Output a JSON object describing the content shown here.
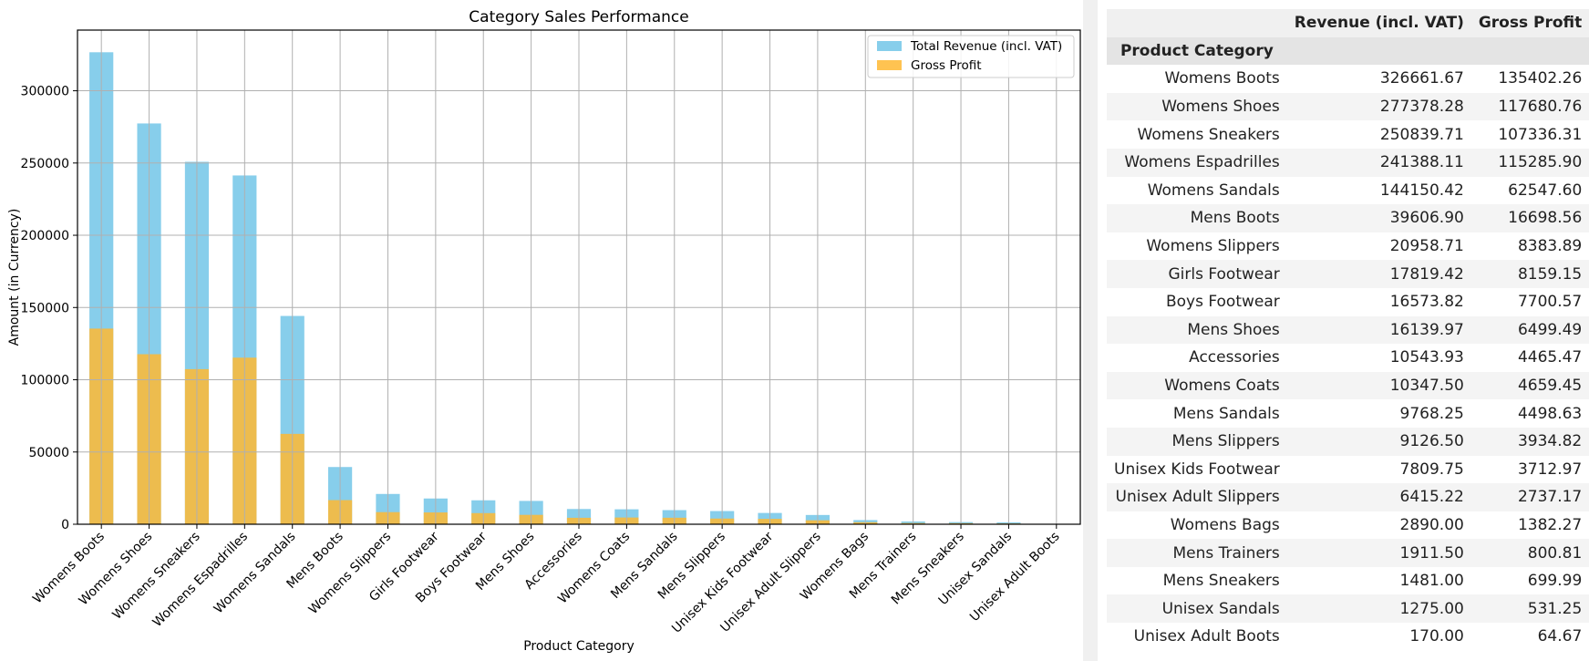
{
  "chart_data": {
    "type": "bar",
    "title": "Category Sales Performance",
    "xlabel": "Product Category",
    "ylabel": "Amount (in Currency)",
    "ylim": [
      0,
      342000
    ],
    "yticks": [
      0,
      50000,
      100000,
      150000,
      200000,
      250000,
      300000
    ],
    "grid": true,
    "legend_position": "top-right",
    "categories": [
      "Womens Boots",
      "Womens Shoes",
      "Womens Sneakers",
      "Womens Espadrilles",
      "Womens Sandals",
      "Mens Boots",
      "Womens Slippers",
      "Girls Footwear",
      "Boys Footwear",
      "Mens Shoes",
      "Accessories",
      "Womens Coats",
      "Mens Sandals",
      "Mens Slippers",
      "Unisex Kids Footwear",
      "Unisex Adult Slippers",
      "Womens Bags",
      "Mens Trainers",
      "Mens Sneakers",
      "Unisex Sandals",
      "Unisex Adult Boots"
    ],
    "series": [
      {
        "name": "Total Revenue (incl. VAT)",
        "color": "#87ceeb",
        "values": [
          326661.67,
          277378.28,
          250839.71,
          241388.11,
          144150.42,
          39606.9,
          20958.71,
          17819.42,
          16573.82,
          16139.97,
          10543.93,
          10347.5,
          9768.25,
          9126.5,
          7809.75,
          6415.22,
          2890.0,
          1911.5,
          1481.0,
          1275.0,
          170.0
        ]
      },
      {
        "name": "Gross Profit",
        "color": "#ffb833",
        "values": [
          135402.26,
          117680.76,
          107336.31,
          115285.9,
          62547.6,
          16698.56,
          8383.89,
          8159.15,
          7700.57,
          6499.49,
          4465.47,
          4659.45,
          4498.63,
          3934.82,
          3712.97,
          2737.17,
          1382.27,
          800.81,
          699.99,
          531.25,
          64.67
        ]
      }
    ]
  },
  "table": {
    "col_revenue": "Revenue (incl. VAT)",
    "col_profit": "Gross Profit",
    "index_name": "Product Category",
    "rows": [
      {
        "category": "Womens Boots",
        "revenue": "326661.67",
        "profit": "135402.26"
      },
      {
        "category": "Womens Shoes",
        "revenue": "277378.28",
        "profit": "117680.76"
      },
      {
        "category": "Womens Sneakers",
        "revenue": "250839.71",
        "profit": "107336.31"
      },
      {
        "category": "Womens Espadrilles",
        "revenue": "241388.11",
        "profit": "115285.90"
      },
      {
        "category": "Womens Sandals",
        "revenue": "144150.42",
        "profit": "62547.60"
      },
      {
        "category": "Mens Boots",
        "revenue": "39606.90",
        "profit": "16698.56"
      },
      {
        "category": "Womens Slippers",
        "revenue": "20958.71",
        "profit": "8383.89"
      },
      {
        "category": "Girls Footwear",
        "revenue": "17819.42",
        "profit": "8159.15"
      },
      {
        "category": "Boys Footwear",
        "revenue": "16573.82",
        "profit": "7700.57"
      },
      {
        "category": "Mens Shoes",
        "revenue": "16139.97",
        "profit": "6499.49"
      },
      {
        "category": "Accessories",
        "revenue": "10543.93",
        "profit": "4465.47"
      },
      {
        "category": "Womens Coats",
        "revenue": "10347.50",
        "profit": "4659.45"
      },
      {
        "category": "Mens Sandals",
        "revenue": "9768.25",
        "profit": "4498.63"
      },
      {
        "category": "Mens Slippers",
        "revenue": "9126.50",
        "profit": "3934.82"
      },
      {
        "category": "Unisex Kids Footwear",
        "revenue": "7809.75",
        "profit": "3712.97"
      },
      {
        "category": "Unisex Adult Slippers",
        "revenue": "6415.22",
        "profit": "2737.17"
      },
      {
        "category": "Womens Bags",
        "revenue": "2890.00",
        "profit": "1382.27"
      },
      {
        "category": "Mens Trainers",
        "revenue": "1911.50",
        "profit": "800.81"
      },
      {
        "category": "Mens Sneakers",
        "revenue": "1481.00",
        "profit": "699.99"
      },
      {
        "category": "Unisex Sandals",
        "revenue": "1275.00",
        "profit": "531.25"
      },
      {
        "category": "Unisex Adult Boots",
        "revenue": "170.00",
        "profit": "64.67"
      }
    ]
  }
}
